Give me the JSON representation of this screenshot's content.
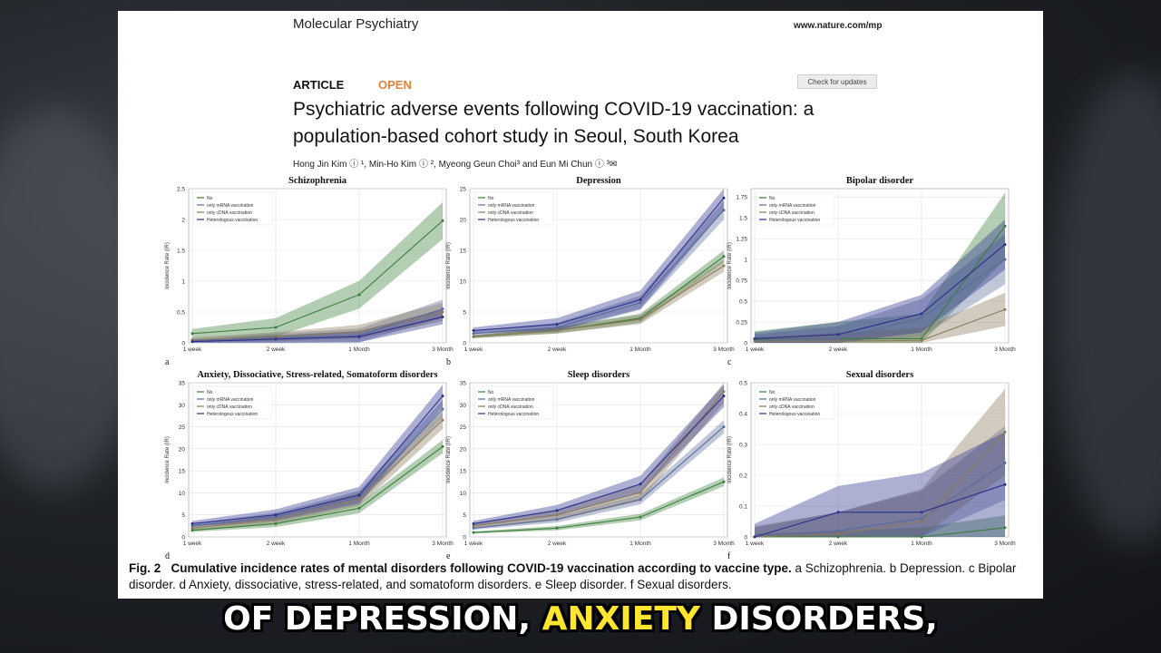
{
  "header": {
    "journal": "Molecular Psychiatry",
    "site": "www.nature.com/mp",
    "article": "ARTICLE",
    "open": "OPEN",
    "check_updates": "Check for updates",
    "title_line1": "Psychiatric adverse events following COVID-19 vaccination: a",
    "title_line2": "population-based cohort study in Seoul, South Korea",
    "authors": "Hong Jin Kim ⓘ ¹, Min-Ho Kim ⓘ ², Myeong Geun Choi³ and Eun Mi Chun ⓘ ³✉"
  },
  "caption": {
    "fig": "Fig. 2",
    "bold": "Cumulative incidence rates of mental disorders following COVID-19 vaccination according to vaccine type.",
    "rest": " a Schizophrenia. b Depression. c Bipolar disorder. d Anxiety, dissociative, stress-related, and somatoform disorders. e Sleep disorder. f Sexual disorders."
  },
  "subtitle": {
    "part1": "OF DEPRESSION, ",
    "highlight": "ANXIETY",
    "part2": " DISORDERS,"
  },
  "colors": {
    "No": "#3a7d3a",
    "only mRNA vaccination": "#5a6b9a",
    "only cDNA vaccination": "#8a7a5a",
    "Heterologous vaccination": "#2b2f8c"
  },
  "chart_data": [
    {
      "type": "line",
      "panel": "a",
      "title": "Schizophrenia",
      "ylabel": "Incidence Rate (IR)",
      "categories": [
        "1 week",
        "2 week",
        "1 Month",
        "3 Month"
      ],
      "ylim": [
        0,
        2.5
      ],
      "yticks": [
        0.0,
        0.5,
        1.0,
        1.5,
        2.0,
        2.5
      ],
      "legend": "top-left",
      "series": [
        {
          "name": "No",
          "values": [
            0.15,
            0.25,
            0.78,
            1.98
          ],
          "band": 0.3
        },
        {
          "name": "only mRNA vaccination",
          "values": [
            0.03,
            0.08,
            0.12,
            0.55
          ],
          "band": 0.15
        },
        {
          "name": "only cDNA vaccination",
          "values": [
            0.05,
            0.1,
            0.18,
            0.5
          ],
          "band": 0.15
        },
        {
          "name": "Heterologous vaccination",
          "values": [
            0.02,
            0.06,
            0.1,
            0.42
          ],
          "band": 0.12
        }
      ]
    },
    {
      "type": "line",
      "panel": "b",
      "title": "Depression",
      "ylabel": "Incidence Rate (IR)",
      "categories": [
        "1 week",
        "2 week",
        "1 Month",
        "3 Month"
      ],
      "ylim": [
        0,
        25
      ],
      "yticks": [
        0,
        5,
        10,
        15,
        20,
        25
      ],
      "legend": "top-left",
      "series": [
        {
          "name": "No",
          "values": [
            1.0,
            2.0,
            4.0,
            14.0
          ],
          "band": 1.0
        },
        {
          "name": "only mRNA vaccination",
          "values": [
            1.5,
            2.5,
            6.5,
            21.5
          ],
          "band": 1.5
        },
        {
          "name": "only cDNA vaccination",
          "values": [
            1.0,
            2.0,
            3.8,
            12.5
          ],
          "band": 1.0
        },
        {
          "name": "Heterologous vaccination",
          "values": [
            2.0,
            3.0,
            7.0,
            23.5
          ],
          "band": 2.0
        }
      ]
    },
    {
      "type": "line",
      "panel": "c",
      "title": "Bipolar disorder",
      "ylabel": "Incidence Rate (IR)",
      "categories": [
        "1 week",
        "2 week",
        "1 Month",
        "3 Month"
      ],
      "ylim": [
        0,
        1.85
      ],
      "yticks": [
        0.0,
        0.25,
        0.5,
        0.75,
        1.0,
        1.25,
        1.5,
        1.75
      ],
      "legend": "top-left",
      "series": [
        {
          "name": "No",
          "values": [
            0.04,
            0.05,
            0.05,
            1.4
          ],
          "band": 0.4
        },
        {
          "name": "only mRNA vaccination",
          "values": [
            0.03,
            0.05,
            0.3,
            1.0
          ],
          "band": 0.3
        },
        {
          "name": "only cDNA vaccination",
          "values": [
            0.02,
            0.02,
            0.03,
            0.4
          ],
          "band": 0.2
        },
        {
          "name": "Heterologous vaccination",
          "values": [
            0.05,
            0.1,
            0.35,
            1.18
          ],
          "band": 0.3
        }
      ]
    },
    {
      "type": "line",
      "panel": "d",
      "title": "Anxiety, Dissociative, Stress-related, Somatoform disorders",
      "ylabel": "Incidence Rate (IR)",
      "categories": [
        "1 week",
        "2 week",
        "1 Month",
        "3 Month"
      ],
      "ylim": [
        0,
        35
      ],
      "yticks": [
        0,
        5,
        10,
        15,
        20,
        25,
        30,
        35
      ],
      "legend": "top-left",
      "series": [
        {
          "name": "No",
          "values": [
            1.5,
            3.0,
            6.5,
            20.5
          ],
          "band": 1.5
        },
        {
          "name": "only mRNA vaccination",
          "values": [
            2.5,
            4.5,
            9.0,
            29.0
          ],
          "band": 2.0
        },
        {
          "name": "only cDNA vaccination",
          "values": [
            2.0,
            4.0,
            8.5,
            26.5
          ],
          "band": 2.0
        },
        {
          "name": "Heterologous vaccination",
          "values": [
            3.0,
            5.0,
            9.5,
            32.0
          ],
          "band": 2.5
        }
      ]
    },
    {
      "type": "line",
      "panel": "e",
      "title": "Sleep disorders",
      "ylabel": "Incidence Rate (IR)",
      "categories": [
        "1 week",
        "2 week",
        "1 Month",
        "3 Month"
      ],
      "ylim": [
        0,
        35
      ],
      "yticks": [
        0,
        5,
        10,
        15,
        20,
        25,
        30,
        35
      ],
      "legend": "top-left",
      "series": [
        {
          "name": "No",
          "values": [
            1.0,
            2.0,
            4.5,
            12.5
          ],
          "band": 1.0
        },
        {
          "name": "only mRNA vaccination",
          "values": [
            2.0,
            4.0,
            8.5,
            25.0
          ],
          "band": 1.5
        },
        {
          "name": "only cDNA vaccination",
          "values": [
            2.5,
            5.0,
            10.0,
            33.0
          ],
          "band": 2.5
        },
        {
          "name": "Heterologous vaccination",
          "values": [
            3.0,
            6.0,
            12.0,
            32.0
          ],
          "band": 2.5
        }
      ]
    },
    {
      "type": "line",
      "panel": "f",
      "title": "Sexual disorders",
      "ylabel": "Incidence Rate (IR)",
      "categories": [
        "1 week",
        "2 week",
        "1 Month",
        "3 Month"
      ],
      "ylim": [
        0,
        0.5
      ],
      "yticks": [
        0.0,
        0.1,
        0.2,
        0.3,
        0.4,
        0.5
      ],
      "legend": "top-left",
      "series": [
        {
          "name": "No",
          "values": [
            0.0,
            0.0,
            0.0,
            0.03
          ],
          "band": 0.04
        },
        {
          "name": "only mRNA vaccination",
          "values": [
            0.0,
            0.02,
            0.06,
            0.24
          ],
          "band": 0.12
        },
        {
          "name": "only cDNA vaccination",
          "values": [
            0.0,
            0.01,
            0.05,
            0.34
          ],
          "band": 0.14
        },
        {
          "name": "Heterologous vaccination",
          "values": [
            0.0,
            0.08,
            0.08,
            0.17
          ],
          "band": 0.17
        }
      ]
    }
  ]
}
